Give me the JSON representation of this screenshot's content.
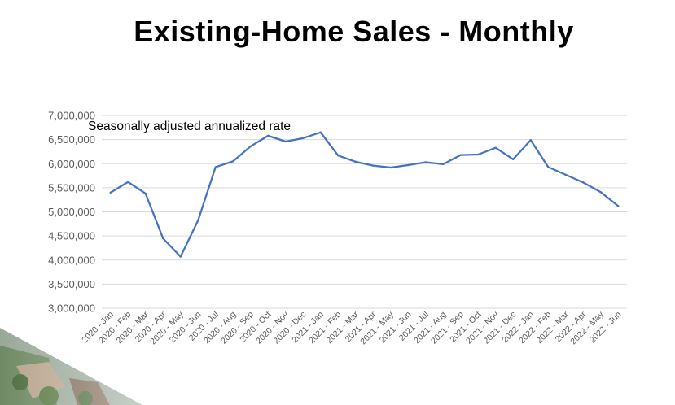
{
  "slide": {
    "title": "Existing-Home Sales - Monthly"
  },
  "colors": {
    "series": "#4472C4",
    "gridline": "#d9d9d9",
    "tick_text": "#595959"
  },
  "chart_data": {
    "type": "line",
    "title": "Existing-Home Sales - Monthly",
    "annotation": "Seasonally adjusted annualized rate",
    "xlabel": "",
    "ylabel": "",
    "ylim": [
      3000000,
      7000000
    ],
    "y_ticks": [
      3000000,
      3500000,
      4000000,
      4500000,
      5000000,
      5500000,
      6000000,
      6500000,
      7000000
    ],
    "y_tick_labels": [
      "3,000,000",
      "3,500,000",
      "4,000,000",
      "4,500,000",
      "5,000,000",
      "5,500,000",
      "6,000,000",
      "6,500,000",
      "7,000,000"
    ],
    "grid": true,
    "legend": "none",
    "categories": [
      "2020 - Jan",
      "2020 - Feb",
      "2020 - Mar",
      "2020 - Apr",
      "2020 - May",
      "2020 - Jun",
      "2020 - Jul",
      "2020 - Aug",
      "2020 - Sep",
      "2020 - Oct",
      "2020 - Nov",
      "2020 - Dec",
      "2021 - Jan",
      "2021 - Feb",
      "2021 - Mar",
      "2021 - Apr",
      "2021 - May",
      "2021 - Jun",
      "2021 - Jul",
      "2021 - Aug",
      "2021 - Sep",
      "2021 - Oct",
      "2021 - Nov",
      "2021 - Dec",
      "2022 - Jan",
      "2022 - Feb",
      "2022 - Mar",
      "2022 - Apr",
      "2022 - May",
      "2022 - Jun"
    ],
    "series": [
      {
        "name": "Existing-Home Sales",
        "values": [
          5400000,
          5620000,
          5380000,
          4450000,
          4070000,
          4820000,
          5930000,
          6050000,
          6360000,
          6580000,
          6460000,
          6530000,
          6650000,
          6170000,
          6040000,
          5960000,
          5920000,
          5970000,
          6030000,
          5990000,
          6180000,
          6190000,
          6330000,
          6090000,
          6490000,
          5930000,
          5770000,
          5610000,
          5410000,
          5120000
        ]
      }
    ]
  }
}
